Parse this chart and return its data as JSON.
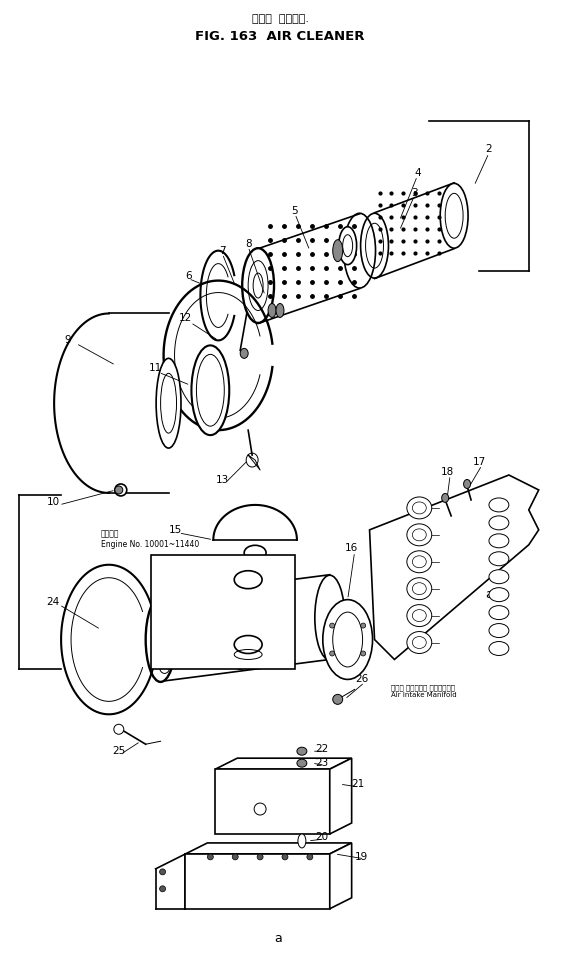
{
  "title_jp": "エアー  クリーナ.",
  "title_en": "FIG. 163  AIR CLEANER",
  "bg_color": "#ffffff",
  "line_color": "#000000",
  "fig_width": 5.61,
  "fig_height": 9.55,
  "dpi": 100,
  "annotation1": "適用番号\nEngine No. 10001~11440",
  "annotation2": "エアー インテーク マニホールド\nAir Intake Manifold"
}
